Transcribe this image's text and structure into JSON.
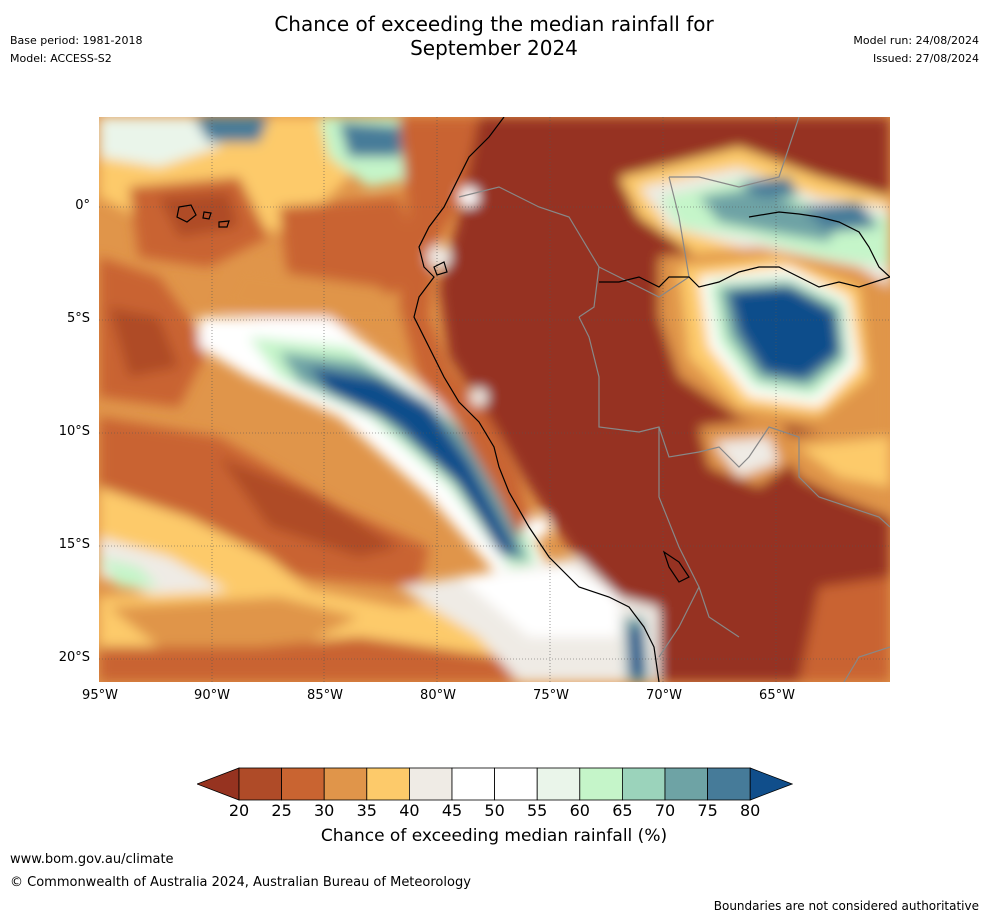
{
  "title": {
    "line1": "Chance of exceeding the median rainfall for",
    "line2": "September 2024"
  },
  "meta": {
    "base_period": "Base period: 1981-2018",
    "model": "Model: ACCESS-S2",
    "model_run": "Model run: 24/08/2024",
    "issued": "Issued: 27/08/2024"
  },
  "map": {
    "lat_labels": [
      "0°",
      "5°S",
      "10°S",
      "15°S",
      "20°S"
    ],
    "lon_labels": [
      "95°W",
      "90°W",
      "85°W",
      "80°W",
      "75°W",
      "70°W",
      "65°W"
    ],
    "gridlines": true,
    "colors": {
      "very_dry": "#963320",
      "dry_20": "#af4b28",
      "dry_25": "#c96431",
      "dry_30": "#e0954a",
      "dry_35": "#fdca6a",
      "neutral_40": "#efebe5",
      "neutral_45": "#ffffff",
      "neutral_50": "#ffffff",
      "wet_55": "#eaf5ea",
      "wet_60": "#c5f5c9",
      "wet_65": "#9bd3bb",
      "wet_70": "#6ea3a5",
      "wet_75": "#467b99",
      "wet_80": "#104e8b"
    }
  },
  "colorbar": {
    "ticks": [
      "20",
      "25",
      "30",
      "35",
      "40",
      "45",
      "50",
      "55",
      "60",
      "65",
      "70",
      "75",
      "80"
    ],
    "colors": [
      "#963320",
      "#af4b28",
      "#c96431",
      "#e0954a",
      "#fdca6a",
      "#efebe5",
      "#ffffff",
      "#ffffff",
      "#eaf5ea",
      "#c5f5c9",
      "#9bd3bb",
      "#6ea3a5",
      "#467b99",
      "#104e8b"
    ],
    "label": "Chance of exceeding median rainfall (%)"
  },
  "footer": {
    "url": "www.bom.gov.au/climate",
    "copyright": "© Commonwealth of Australia 2024, Australian Bureau of Meteorology",
    "note": "Boundaries are not considered authoritative"
  }
}
